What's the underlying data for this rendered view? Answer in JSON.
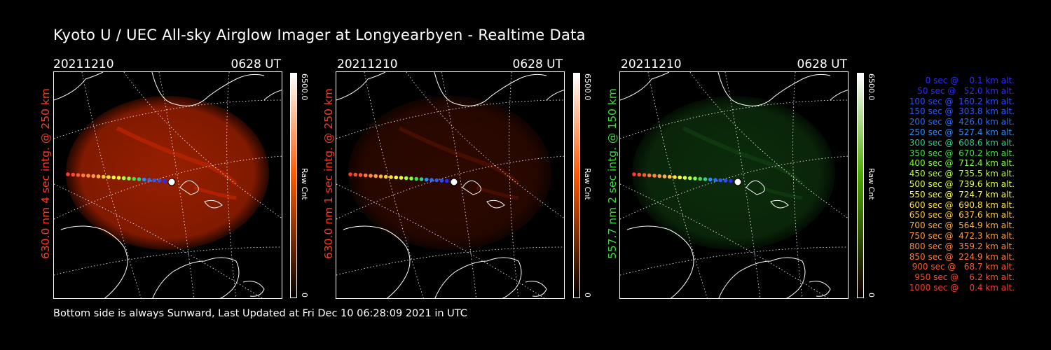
{
  "title": "Kyoto U / UEC All-sky Airglow Imager at Longyearbyen - Realtime Data",
  "footer": "Bottom side is always Sunward, Last Updated at Fri Dec 10 06:28:09 2021 in UTC",
  "panels": [
    {
      "date": "20211210",
      "time": "0628 UT",
      "side_label": "630.0 nm 4 sec intg. @ 250 km",
      "label_color": "#ff3b1f",
      "colorbar_max": "6500.0",
      "colorbar_min": "0",
      "colorbar_unit": "Raw Cnt",
      "colorbar_color": "#ff5a00",
      "glow_color": "#b22400",
      "glow_opacity": 0.85
    },
    {
      "date": "20211210",
      "time": "0628 UT",
      "side_label": "630.0 nm 1 sec intg. @ 250 km",
      "label_color": "#ff3b1f",
      "colorbar_max": "6500.0",
      "colorbar_min": "0",
      "colorbar_unit": "Raw Cnt",
      "colorbar_color": "#ff5a00",
      "glow_color": "#4a0e00",
      "glow_opacity": 0.6
    },
    {
      "date": "20211210",
      "time": "0628 UT",
      "side_label": "557.7 nm 2 sec intg. @ 150 km",
      "label_color": "#3ddc3d",
      "colorbar_max": "6500.0",
      "colorbar_min": "0",
      "colorbar_unit": "Raw Cnt",
      "colorbar_color": "#4caa00",
      "glow_color": "#0f3a0f",
      "glow_opacity": 0.75
    }
  ],
  "legend": [
    {
      "text": "   0 sec @    0.1 km alt.",
      "color": "#2b2bff"
    },
    {
      "text": "  50 sec @   52.0 km alt.",
      "color": "#2b2bff"
    },
    {
      "text": " 100 sec @  160.2 km alt.",
      "color": "#2b4bff"
    },
    {
      "text": " 150 sec @  303.8 km alt.",
      "color": "#2b5bff"
    },
    {
      "text": " 200 sec @  426.0 km alt.",
      "color": "#2b6bff"
    },
    {
      "text": " 250 sec @  527.4 km alt.",
      "color": "#2b8bff"
    },
    {
      "text": " 300 sec @  608.6 km alt.",
      "color": "#2bd08a"
    },
    {
      "text": " 350 sec @  670.2 km alt.",
      "color": "#40e040"
    },
    {
      "text": " 400 sec @  712.4 km alt.",
      "color": "#7cff3a"
    },
    {
      "text": " 450 sec @  735.5 km alt.",
      "color": "#b0ff3a"
    },
    {
      "text": " 500 sec @  739.6 km alt.",
      "color": "#dfff3a"
    },
    {
      "text": " 550 sec @  724.7 km alt.",
      "color": "#ffff3a"
    },
    {
      "text": " 600 sec @  690.8 km alt.",
      "color": "#ffe03a"
    },
    {
      "text": " 650 sec @  637.6 km alt.",
      "color": "#ffc83a"
    },
    {
      "text": " 700 sec @  564.9 km alt.",
      "color": "#ffb03a"
    },
    {
      "text": " 750 sec @  472.3 km alt.",
      "color": "#ff9a3a"
    },
    {
      "text": " 800 sec @  359.2 km alt.",
      "color": "#ff883a"
    },
    {
      "text": " 850 sec @  224.9 km alt.",
      "color": "#ff7a3a"
    },
    {
      "text": " 900 sec @   68.7 km alt.",
      "color": "#ff5a2b"
    },
    {
      "text": " 950 sec @    6.2 km alt.",
      "color": "#ff4a2b"
    },
    {
      "text": "1000 sec @    0.4 km alt.",
      "color": "#ff3a2b"
    }
  ]
}
